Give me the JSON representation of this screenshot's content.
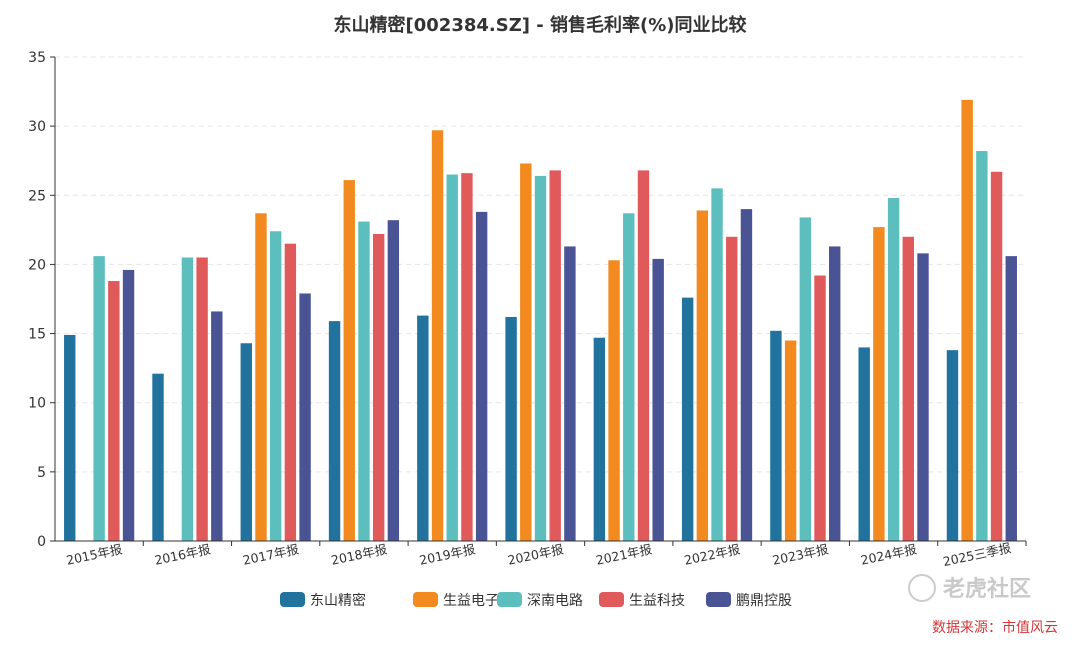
{
  "title": "东山精密[002384.SZ] - 销售毛利率(%)同业比较",
  "watermark": {
    "logo": "老虎社区",
    "source": "数据来源：市值风云"
  },
  "colors": {
    "series": [
      "#21739e",
      "#f28a1f",
      "#5cbfbe",
      "#e05a5c",
      "#4a5394"
    ],
    "grid": "#e6e6e6",
    "axis": "#333333"
  },
  "chart_data": {
    "type": "bar",
    "title": "东山精密[002384.SZ] - 销售毛利率(%)同业比较",
    "xlabel": "",
    "ylabel": "",
    "ylim": [
      0,
      35
    ],
    "yticks": [
      0,
      5,
      10,
      15,
      20,
      25,
      30,
      35
    ],
    "grid": true,
    "legend_position": "bottom",
    "categories": [
      "2015年报",
      "2016年报",
      "2017年报",
      "2018年报",
      "2019年报",
      "2020年报",
      "2021年报",
      "2022年报",
      "2023年报",
      "2024年报",
      "2025三季报"
    ],
    "series": [
      {
        "name": "东山精密",
        "values": [
          14.9,
          12.1,
          14.3,
          15.9,
          16.3,
          16.2,
          14.7,
          17.6,
          15.2,
          14.0,
          13.8
        ]
      },
      {
        "name": "生益电子",
        "values": [
          null,
          null,
          23.7,
          26.1,
          29.7,
          27.3,
          20.3,
          23.9,
          14.5,
          22.7,
          31.9
        ]
      },
      {
        "name": "深南电路",
        "values": [
          20.6,
          20.5,
          22.4,
          23.1,
          26.5,
          26.4,
          23.7,
          25.5,
          23.4,
          24.8,
          28.2
        ]
      },
      {
        "name": "生益科技",
        "values": [
          18.8,
          20.5,
          21.5,
          22.2,
          26.6,
          26.8,
          26.8,
          22.0,
          19.2,
          22.0,
          26.7
        ]
      },
      {
        "name": "鹏鼎控股",
        "values": [
          19.6,
          16.6,
          17.9,
          23.2,
          23.8,
          21.3,
          20.4,
          24.0,
          21.3,
          20.8,
          20.6
        ]
      }
    ]
  }
}
